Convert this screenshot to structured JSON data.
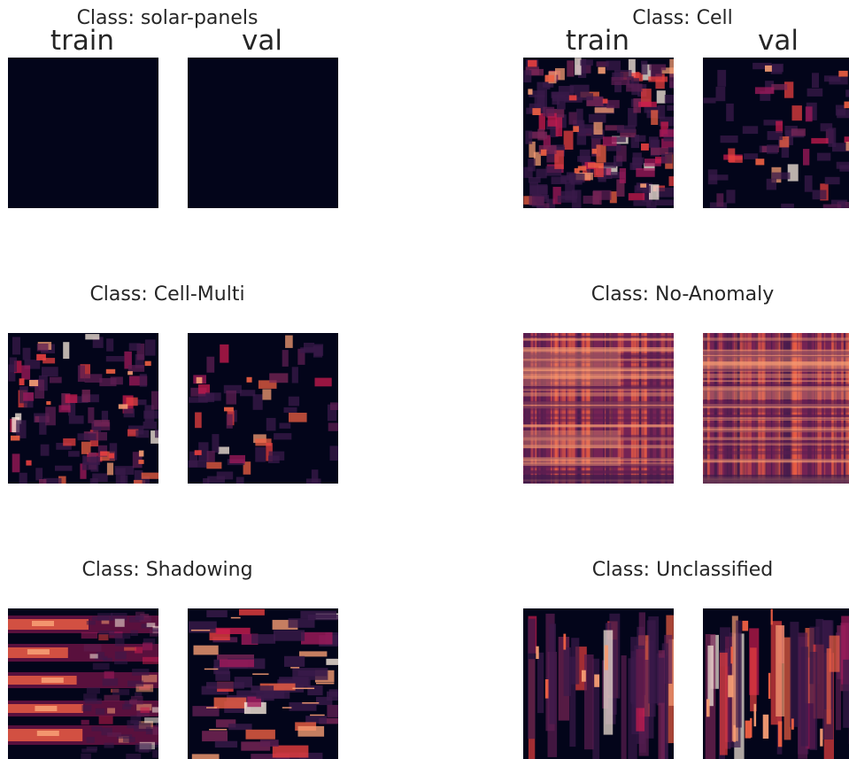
{
  "column_labels": {
    "train": "train",
    "val": "val"
  },
  "chart_data": {
    "type": "heatmap",
    "colormap": "rocket",
    "background_color": "#03051a",
    "palette": [
      "#03051a",
      "#3a1a4a",
      "#5c1e51",
      "#7b2557",
      "#a11a5b",
      "#cb1b4f",
      "#e83f3f",
      "#f06043",
      "#f69c73",
      "#faebdd"
    ],
    "panels": [
      {
        "title": "Class: solar-panels",
        "columns": [
          "train",
          "val"
        ],
        "pattern": "empty",
        "show_column_labels": true
      },
      {
        "title": "Class: Cell",
        "columns": [
          "train",
          "val"
        ],
        "pattern": "sparse-blocks",
        "show_column_labels": true
      },
      {
        "title": "Class: Cell-Multi",
        "columns": [
          "train",
          "val"
        ],
        "pattern": "sparse-blocks-small",
        "show_column_labels": false
      },
      {
        "title": "Class: No-Anomaly",
        "columns": [
          "train",
          "val"
        ],
        "pattern": "dense-grid",
        "show_column_labels": false
      },
      {
        "title": "Class: Shadowing",
        "columns": [
          "train",
          "val"
        ],
        "pattern": "horizontal-bands",
        "show_column_labels": false
      },
      {
        "title": "Class: Unclassified",
        "columns": [
          "train",
          "val"
        ],
        "pattern": "vertical-strips",
        "show_column_labels": false
      }
    ]
  }
}
